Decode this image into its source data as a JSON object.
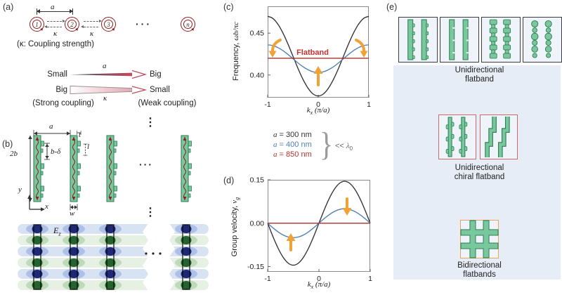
{
  "colors": {
    "green_fill": "#79c79c",
    "green_stroke": "#2c7a52",
    "dark_red": "#8e1f1f",
    "curve_black": "#30303a",
    "curve_blue": "#4d7fb5",
    "curve_red": "#a93228",
    "flatband_text": "#c9302a",
    "orange": "#f0a236",
    "panel_e_bg": "#e7edf7",
    "box_bg": "#eff3fa",
    "blob_blue": "#17206e",
    "blob_green": "#1e5c26"
  },
  "panel_a": {
    "label": "(a)",
    "resonators": [
      "1",
      "2",
      "3",
      "n"
    ],
    "dots": "···",
    "spacing_label": "a",
    "kappa": "κ",
    "caption": "(κ: Coupling strength)",
    "row_a": {
      "left": "Small",
      "mid": "a",
      "right": "Big"
    },
    "row_k": {
      "left": "Big",
      "mid": "κ",
      "right": "Small"
    },
    "strong": "(Strong coupling)",
    "weak": "(Weak coupling)"
  },
  "panel_b": {
    "label": "(b)",
    "dims": {
      "a": "a",
      "two_b": "2b",
      "b_delta": "b-δ",
      "t": "t",
      "l": "l",
      "w": "w"
    },
    "axis_x": "x",
    "axis_y": "y",
    "dots_v": "⋮",
    "dots_h": "···",
    "field_label": {
      "base": "E",
      "sub": "z"
    }
  },
  "panel_c": {
    "label": "(c)",
    "ylabel_prefix": "Frequency, ",
    "ylabel_math": "ωb/πc",
    "xlabel": {
      "base": "k",
      "sub": "x",
      "unit": " (π/a)"
    }
  },
  "panel_d": {
    "label": "(d)",
    "ylabel_prefix": "Group velocity, ",
    "ylabel_base": "v",
    "ylabel_sub": "g",
    "xlabel": {
      "base": "k",
      "sub": "x",
      "unit": " (π/a)"
    }
  },
  "legend": {
    "items": [
      {
        "var": "a",
        "rest": " = 300 nm",
        "color": "#30303a"
      },
      {
        "var": "a",
        "rest": " = 400 nm",
        "color": "#4d7fb5"
      },
      {
        "var": "a",
        "rest": " = 850 nm",
        "color": "#b5342c"
      }
    ],
    "brace": "}",
    "note_lt": "<< ",
    "note_lambda": "λ",
    "note_sub": "0"
  },
  "panel_e": {
    "label": "(e)",
    "groups": [
      {
        "caption_line1": "Unidirectional",
        "caption_line2": "flatband",
        "border": "#3c3c46",
        "boxes": [
          "notched-bars",
          "plain-bars",
          "bumpy-bars",
          "dot-columns"
        ]
      },
      {
        "caption_line1": "Unidirectional",
        "caption_line2": "chiral flatband",
        "border": "#c96b6b",
        "boxes": [
          "chiral-bars",
          "zigzag-bars"
        ]
      },
      {
        "caption_line1": "Bidirectional",
        "caption_line2": "flatbands",
        "border": "#e5a55f",
        "boxes": [
          "grid"
        ]
      }
    ]
  },
  "chart_data": [
    {
      "id": "chart-c",
      "type": "line",
      "title": "",
      "xlabel": "k_x (π/a)",
      "ylabel": "Frequency, ωb/πc",
      "xlim": [
        -1,
        1
      ],
      "ylim": [
        0.373,
        0.482
      ],
      "xticks": [
        -1,
        0,
        1
      ],
      "xtick_labels": [
        "-1",
        "0",
        "1"
      ],
      "yticks": [
        0.4,
        0.45
      ],
      "ytick_labels": [
        "0.40",
        "0.45"
      ],
      "grid": false,
      "legend_position": "below",
      "annotation": "Flatband",
      "x": [
        -1,
        -0.9,
        -0.8,
        -0.7,
        -0.6,
        -0.5,
        -0.4,
        -0.3,
        -0.2,
        -0.1,
        0,
        0.1,
        0.2,
        0.3,
        0.4,
        0.5,
        0.6,
        0.7,
        0.8,
        0.9,
        1
      ],
      "series": [
        {
          "name": "a = 300 nm",
          "color": "#30303a",
          "values": [
            0.47,
            0.4677,
            0.4609,
            0.4504,
            0.4372,
            0.4225,
            0.4078,
            0.3946,
            0.3841,
            0.3773,
            0.375,
            0.3773,
            0.3841,
            0.3946,
            0.4078,
            0.4225,
            0.4372,
            0.4504,
            0.4609,
            0.4677,
            0.47
          ]
        },
        {
          "name": "a = 400 nm",
          "color": "#4d7fb5",
          "values": [
            0.436,
            0.4352,
            0.4328,
            0.4292,
            0.4246,
            0.4195,
            0.4144,
            0.4098,
            0.4062,
            0.4038,
            0.403,
            0.4038,
            0.4062,
            0.4098,
            0.4144,
            0.4195,
            0.4246,
            0.4292,
            0.4328,
            0.4352,
            0.436
          ]
        },
        {
          "name": "a = 850 nm (flatband)",
          "color": "#a93228",
          "values": [
            0.42,
            0.42,
            0.42,
            0.42,
            0.42,
            0.42,
            0.42,
            0.42,
            0.42,
            0.42,
            0.42,
            0.42,
            0.42,
            0.42,
            0.42,
            0.42,
            0.42,
            0.42,
            0.42,
            0.42,
            0.42
          ]
        }
      ]
    },
    {
      "id": "chart-d",
      "type": "line",
      "title": "",
      "xlabel": "k_x (π/a)",
      "ylabel": "Group velocity, v_g",
      "xlim": [
        -1,
        1
      ],
      "ylim": [
        -0.168,
        0.15
      ],
      "xticks": [
        -1,
        0,
        1
      ],
      "xtick_labels": [
        "-1",
        "0",
        "1"
      ],
      "yticks": [
        -0.15,
        0,
        0.15
      ],
      "ytick_labels": [
        "-0.15",
        "0.00",
        "0.15"
      ],
      "grid": false,
      "x": [
        -1,
        -0.9,
        -0.8,
        -0.7,
        -0.6,
        -0.5,
        -0.4,
        -0.3,
        -0.2,
        -0.1,
        0,
        0.1,
        0.2,
        0.3,
        0.4,
        0.5,
        0.6,
        0.7,
        0.8,
        0.9,
        1
      ],
      "series": [
        {
          "name": "a = 300 nm",
          "color": "#30303a",
          "values": [
            0,
            -0.0448,
            -0.0852,
            -0.1173,
            -0.1379,
            -0.145,
            -0.1379,
            -0.1173,
            -0.0852,
            -0.0448,
            0,
            0.0448,
            0.0852,
            0.1173,
            0.1379,
            0.145,
            0.1379,
            0.1173,
            0.0852,
            0.0448,
            0
          ]
        },
        {
          "name": "a = 400 nm",
          "color": "#4d7fb5",
          "values": [
            0,
            -0.0155,
            -0.0294,
            -0.0405,
            -0.0476,
            -0.05,
            -0.0476,
            -0.0405,
            -0.0294,
            -0.0155,
            0,
            0.0155,
            0.0294,
            0.0405,
            0.0476,
            0.05,
            0.0476,
            0.0405,
            0.0294,
            0.0155,
            0
          ]
        },
        {
          "name": "a = 850 nm (flatband)",
          "color": "#a93228",
          "values": [
            0,
            0,
            0,
            0,
            0,
            0,
            0,
            0,
            0,
            0,
            0,
            0,
            0,
            0,
            0,
            0,
            0,
            0,
            0,
            0,
            0
          ]
        }
      ]
    }
  ]
}
